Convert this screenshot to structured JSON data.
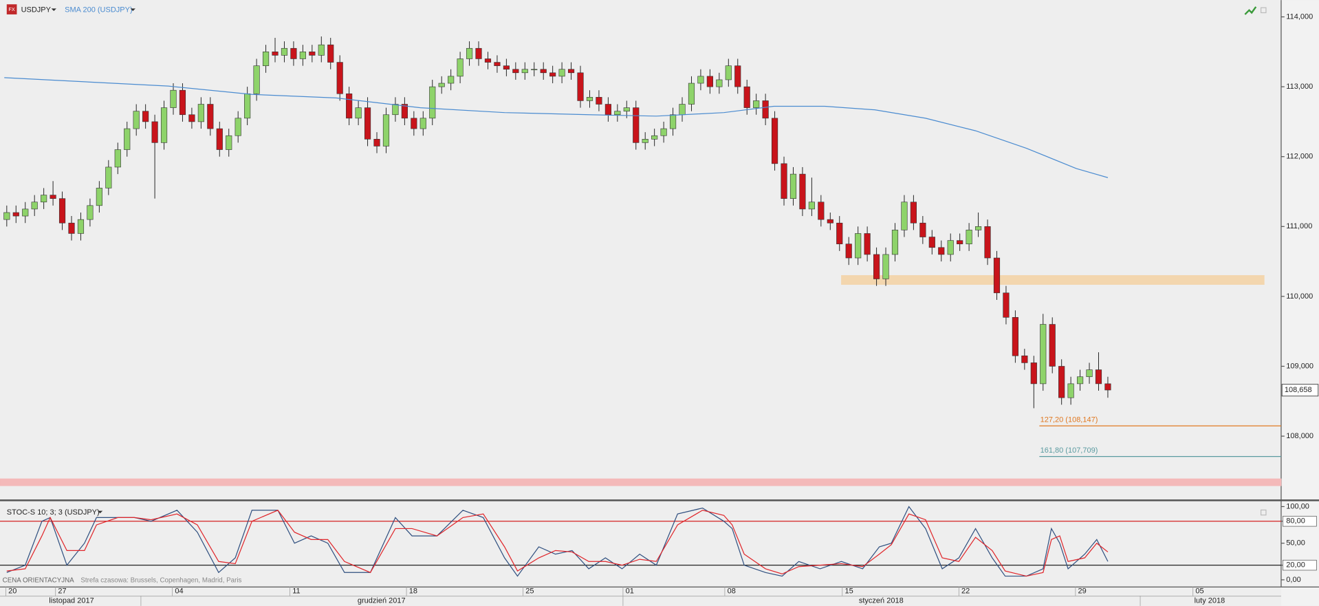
{
  "chart_data": [
    {
      "type": "candlestick",
      "xlim": [
        -0.73,
        137.73
      ],
      "ylim": [
        107.1,
        114.24
      ],
      "yticks": [
        {
          "value": 108,
          "label": "108,000"
        },
        {
          "value": 109,
          "label": "109,000"
        },
        {
          "value": 110,
          "label": "110,000"
        },
        {
          "value": 111,
          "label": "111,000"
        },
        {
          "value": 112,
          "label": "112,000"
        },
        {
          "value": 113,
          "label": "113,000"
        },
        {
          "value": 114,
          "label": "114,000"
        }
      ],
      "xticks": [
        {
          "value": -0.1,
          "label": "20"
        },
        {
          "value": 5.27,
          "label": "27"
        },
        {
          "value": 17.9,
          "label": "04"
        },
        {
          "value": 30.6,
          "label": "11"
        },
        {
          "value": 43.2,
          "label": "18"
        },
        {
          "value": 55.8,
          "label": "25"
        },
        {
          "value": 66.6,
          "label": "01"
        },
        {
          "value": 77.6,
          "label": "08"
        },
        {
          "value": 90.3,
          "label": "15"
        },
        {
          "value": 102.9,
          "label": "22"
        },
        {
          "value": 115.5,
          "label": "29"
        },
        {
          "value": 128.2,
          "label": "05"
        }
      ],
      "month_labels": [
        {
          "value": 7.0,
          "label": "listopad 2017"
        },
        {
          "value": 40.5,
          "label": "grudzień 2017"
        },
        {
          "value": 94.5,
          "label": "styczeń 2018"
        },
        {
          "value": 130.0,
          "label": "luty 2018"
        }
      ],
      "month_bounds": [
        14.5,
        66.6,
        122.5
      ],
      "series": [
        {
          "name": "USDJPY",
          "type": "candlestick",
          "up_color": "#8ed36a",
          "down_color": "#c8141b",
          "open": [
            111.1,
            111.2,
            111.15,
            111.25,
            111.35,
            111.45,
            111.4,
            111.05,
            110.9,
            111.1,
            111.3,
            111.55,
            111.85,
            112.1,
            112.4,
            112.65,
            112.5,
            112.2,
            112.7,
            112.95,
            112.6,
            112.5,
            112.75,
            112.4,
            112.1,
            112.3,
            112.55,
            112.9,
            113.3,
            113.5,
            113.45,
            113.55,
            113.4,
            113.5,
            113.45,
            113.6,
            113.35,
            112.9,
            112.55,
            112.7,
            112.25,
            112.15,
            112.6,
            112.75,
            112.55,
            112.4,
            112.55,
            113.0,
            113.05,
            113.15,
            113.4,
            113.55,
            113.4,
            113.35,
            113.3,
            113.25,
            113.2,
            113.25,
            113.25,
            113.2,
            113.15,
            113.25,
            113.2,
            112.8,
            112.85,
            112.75,
            112.6,
            112.65,
            112.7,
            112.2,
            112.25,
            112.3,
            112.4,
            112.6,
            112.75,
            113.05,
            113.15,
            113.0,
            113.1,
            113.3,
            113.0,
            112.7,
            112.8,
            112.55,
            111.9,
            111.4,
            111.75,
            111.25,
            111.35,
            111.1,
            111.05,
            110.75,
            110.55,
            110.9,
            110.6,
            110.25,
            110.6,
            110.95,
            111.35,
            111.05,
            110.85,
            110.7,
            110.6,
            110.8,
            110.75,
            110.95,
            111.0,
            110.55,
            110.05,
            109.7,
            109.15,
            109.05,
            108.75,
            109.6,
            109.0,
            108.55,
            108.75,
            108.85,
            108.95,
            108.75
          ],
          "high": [
            111.3,
            111.3,
            111.35,
            111.45,
            111.55,
            111.65,
            111.5,
            111.15,
            111.2,
            111.4,
            111.65,
            111.95,
            112.2,
            112.5,
            112.75,
            112.75,
            112.6,
            112.8,
            113.05,
            113.05,
            112.7,
            112.85,
            112.85,
            112.5,
            112.4,
            112.65,
            113.0,
            113.4,
            113.6,
            113.7,
            113.65,
            113.65,
            113.6,
            113.6,
            113.72,
            113.7,
            113.45,
            113.0,
            112.8,
            112.85,
            112.35,
            112.7,
            112.85,
            112.85,
            112.65,
            112.65,
            113.1,
            113.15,
            113.25,
            113.5,
            113.65,
            113.65,
            113.5,
            113.45,
            113.4,
            113.35,
            113.35,
            113.35,
            113.35,
            113.3,
            113.35,
            113.35,
            113.3,
            112.95,
            112.95,
            112.85,
            112.75,
            112.8,
            112.8,
            112.35,
            112.4,
            112.5,
            112.7,
            112.85,
            113.15,
            113.25,
            113.25,
            113.2,
            113.4,
            113.4,
            113.1,
            112.9,
            112.9,
            112.65,
            112.0,
            111.85,
            111.85,
            111.7,
            111.45,
            111.2,
            111.15,
            110.85,
            111.0,
            111.0,
            110.7,
            110.7,
            111.05,
            111.45,
            111.45,
            111.15,
            110.95,
            110.8,
            110.9,
            110.9,
            111.05,
            111.2,
            111.1,
            110.65,
            110.15,
            109.8,
            109.25,
            109.15,
            109.75,
            109.7,
            109.1,
            108.85,
            108.95,
            109.05,
            109.2,
            108.85
          ],
          "low": [
            111.0,
            111.05,
            111.05,
            111.15,
            111.25,
            111.3,
            110.95,
            110.8,
            110.8,
            111.0,
            111.2,
            111.45,
            111.75,
            112.0,
            112.3,
            112.4,
            111.4,
            112.1,
            112.6,
            112.5,
            112.4,
            112.4,
            112.3,
            112.0,
            112.0,
            112.2,
            112.45,
            112.8,
            113.2,
            113.35,
            113.35,
            113.3,
            113.3,
            113.35,
            113.35,
            113.25,
            112.8,
            112.45,
            112.45,
            112.15,
            112.05,
            112.05,
            112.5,
            112.45,
            112.3,
            112.3,
            112.45,
            112.9,
            112.95,
            113.05,
            113.3,
            113.3,
            113.25,
            113.2,
            113.15,
            113.1,
            113.1,
            113.15,
            113.1,
            113.05,
            113.05,
            113.1,
            112.7,
            112.7,
            112.65,
            112.5,
            112.5,
            112.55,
            112.1,
            112.1,
            112.15,
            112.2,
            112.3,
            112.5,
            112.65,
            112.95,
            112.9,
            112.9,
            113.0,
            112.9,
            112.6,
            112.6,
            112.45,
            111.8,
            111.3,
            111.3,
            111.15,
            111.15,
            111.0,
            110.95,
            110.65,
            110.45,
            110.45,
            110.5,
            110.15,
            110.15,
            110.5,
            110.85,
            110.95,
            110.75,
            110.6,
            110.5,
            110.5,
            110.65,
            110.65,
            110.85,
            110.45,
            109.95,
            109.6,
            109.05,
            108.95,
            108.4,
            108.65,
            108.9,
            108.45,
            108.45,
            108.65,
            108.75,
            108.65,
            108.55
          ],
          "close": [
            111.2,
            111.15,
            111.25,
            111.35,
            111.45,
            111.4,
            111.05,
            110.9,
            111.1,
            111.3,
            111.55,
            111.85,
            112.1,
            112.4,
            112.65,
            112.5,
            112.2,
            112.7,
            112.95,
            112.6,
            112.5,
            112.75,
            112.4,
            112.1,
            112.3,
            112.55,
            112.9,
            113.3,
            113.5,
            113.45,
            113.55,
            113.4,
            113.5,
            113.45,
            113.6,
            113.35,
            112.9,
            112.55,
            112.7,
            112.25,
            112.15,
            112.6,
            112.75,
            112.55,
            112.4,
            112.55,
            113.0,
            113.05,
            113.15,
            113.4,
            113.55,
            113.4,
            113.35,
            113.3,
            113.25,
            113.2,
            113.25,
            113.25,
            113.2,
            113.15,
            113.25,
            113.2,
            112.8,
            112.85,
            112.75,
            112.6,
            112.65,
            112.7,
            112.2,
            112.25,
            112.3,
            112.4,
            112.6,
            112.75,
            113.05,
            113.15,
            113.0,
            113.1,
            113.3,
            113.0,
            112.7,
            112.8,
            112.55,
            111.9,
            111.4,
            111.75,
            111.25,
            111.35,
            111.1,
            111.05,
            110.75,
            110.55,
            110.9,
            110.6,
            110.25,
            110.6,
            110.95,
            111.35,
            111.05,
            110.85,
            110.7,
            110.6,
            110.8,
            110.75,
            110.95,
            111.0,
            110.55,
            110.05,
            109.7,
            109.15,
            109.05,
            108.75,
            109.6,
            109.0,
            108.55,
            108.75,
            108.85,
            108.95,
            108.75,
            108.66
          ]
        },
        {
          "name": "SMA 200 (USDJPY)",
          "type": "line",
          "color": "#4a8bd0",
          "x": [
            -0.27,
            17.45,
            26.5,
            35.6,
            44.7,
            53.8,
            62.9,
            70.2,
            77.5,
            82.9,
            88.4,
            93.8,
            99.3,
            104.7,
            110.2,
            115.6,
            119
          ],
          "values": [
            113.13,
            113.01,
            112.89,
            112.84,
            112.7,
            112.63,
            112.6,
            112.58,
            112.63,
            112.72,
            112.72,
            112.67,
            112.55,
            112.37,
            112.12,
            111.83,
            111.7
          ]
        }
      ],
      "levels": [
        {
          "value": 108.147,
          "label": "127,20 (108,147)",
          "color": "#e07820",
          "x_from": 111.6
        },
        {
          "value": 107.709,
          "label": "161,80 (107,709)",
          "color": "#5a9aa0",
          "x_from": 111.6
        }
      ],
      "zones": [
        {
          "from": 110.17,
          "to": 110.3,
          "x_from": 90.2,
          "x_to": 135.9,
          "color": "#f3d6ae"
        },
        {
          "from": 107.29,
          "to": 107.39,
          "color": "#f4b9b9"
        }
      ],
      "last_price": {
        "value": 108.658,
        "label": "108,658"
      }
    },
    {
      "type": "line",
      "title": "STOC-S 10; 3; 3 (USDJPY)",
      "xlim": [
        -0.73,
        137.73
      ],
      "ylim": [
        -9.2,
        105.7
      ],
      "yticks": [
        {
          "value": 0,
          "label": "0,00"
        },
        {
          "value": 20,
          "label": "20,00"
        },
        {
          "value": 50,
          "label": "50,00"
        },
        {
          "value": 80,
          "label": "80,00"
        },
        {
          "value": 100,
          "label": "100,00"
        }
      ],
      "x": [
        0,
        2,
        3.8,
        4.7,
        6.5,
        8.4,
        9.7,
        12,
        13.8,
        15.6,
        18.4,
        20.6,
        22.9,
        24.7,
        26.5,
        29.3,
        31.1,
        32.9,
        34.7,
        36.5,
        39.3,
        42,
        43.8,
        46.5,
        49.3,
        51.5,
        53.8,
        55.2,
        57.5,
        59.3,
        61.1,
        62.9,
        64.7,
        66.5,
        68.4,
        70.2,
        72.5,
        75.2,
        77.5,
        78.4,
        79.7,
        82,
        83.8,
        85.6,
        87.9,
        90.2,
        92.5,
        94.3,
        95.6,
        97.5,
        99.3,
        101.1,
        102.9,
        104.7,
        106.5,
        107.9,
        110.2,
        112,
        112.9,
        113.8,
        114.7,
        116.5,
        117.8,
        119
      ],
      "series": [
        {
          "color": "#2f4f7f",
          "values": [
            10,
            20,
            80,
            85,
            20,
            50,
            85,
            85,
            85,
            80,
            95,
            65,
            10,
            30,
            95,
            95,
            50,
            60,
            50,
            10,
            10,
            85,
            60,
            60,
            95,
            85,
            30,
            5,
            45,
            35,
            40,
            15,
            30,
            15,
            35,
            20,
            90,
            98,
            80,
            70,
            20,
            10,
            5,
            25,
            15,
            25,
            15,
            45,
            50,
            100,
            70,
            15,
            30,
            70,
            30,
            5,
            5,
            15,
            70,
            50,
            15,
            35,
            55,
            25
          ]
        },
        {
          "color": "#e0252a",
          "values": [
            12,
            15,
            60,
            85,
            40,
            40,
            75,
            85,
            85,
            82,
            90,
            75,
            25,
            22,
            80,
            95,
            65,
            55,
            55,
            25,
            10,
            70,
            70,
            60,
            85,
            90,
            45,
            12,
            30,
            40,
            38,
            25,
            25,
            20,
            28,
            25,
            75,
            95,
            88,
            75,
            35,
            15,
            8,
            18,
            20,
            22,
            18,
            35,
            48,
            90,
            82,
            30,
            25,
            58,
            40,
            12,
            5,
            10,
            55,
            60,
            25,
            30,
            50,
            38
          ]
        }
      ],
      "levels": [
        {
          "value": 80,
          "color": "#d42020"
        },
        {
          "value": 20,
          "color": "#222222"
        }
      ]
    }
  ],
  "footer": {
    "price_type": "CENA ORIENTACYJNA",
    "timezone": "Strefa czasowa: Brussels, Copenhagen, Madrid, Paris"
  }
}
